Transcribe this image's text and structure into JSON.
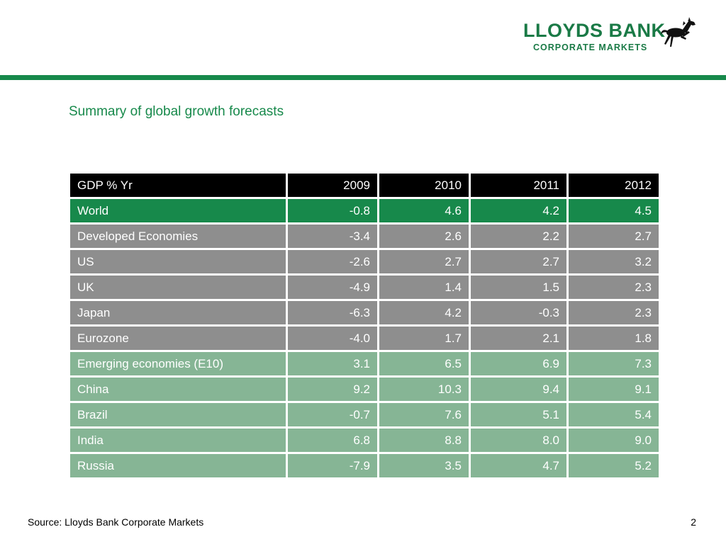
{
  "logo": {
    "line1": "LLOYDS BANK",
    "line2": "CORPORATE MARKETS",
    "color": "#1a7a46"
  },
  "title": "Summary of global growth forecasts",
  "table": {
    "header": {
      "label": "GDP % Yr",
      "years": [
        "2009",
        "2010",
        "2011",
        "2012"
      ]
    },
    "rows": [
      {
        "label": "World",
        "group": "world",
        "values": [
          "-0.8",
          "4.6",
          "4.2",
          "4.5"
        ]
      },
      {
        "label": "Developed Economies",
        "group": "developed",
        "values": [
          "-3.4",
          "2.6",
          "2.2",
          "2.7"
        ]
      },
      {
        "label": "US",
        "group": "developed",
        "values": [
          "-2.6",
          "2.7",
          "2.7",
          "3.2"
        ]
      },
      {
        "label": "UK",
        "group": "developed",
        "values": [
          "-4.9",
          "1.4",
          "1.5",
          "2.3"
        ]
      },
      {
        "label": "Japan",
        "group": "developed",
        "values": [
          "-6.3",
          "4.2",
          "-0.3",
          "2.3"
        ]
      },
      {
        "label": "Eurozone",
        "group": "developed",
        "values": [
          "-4.0",
          "1.7",
          "2.1",
          "1.8"
        ]
      },
      {
        "label": "Emerging economies (E10)",
        "group": "emerging",
        "values": [
          "3.1",
          "6.5",
          "6.9",
          "7.3"
        ]
      },
      {
        "label": "China",
        "group": "emerging",
        "values": [
          "9.2",
          "10.3",
          "9.4",
          "9.1"
        ]
      },
      {
        "label": "Brazil",
        "group": "emerging",
        "values": [
          "-0.7",
          "7.6",
          "5.1",
          "5.4"
        ]
      },
      {
        "label": "India",
        "group": "emerging",
        "values": [
          "6.8",
          "8.8",
          "8.0",
          "9.0"
        ]
      },
      {
        "label": "Russia",
        "group": "emerging",
        "values": [
          "-7.9",
          "3.5",
          "4.7",
          "5.2"
        ]
      }
    ],
    "colors": {
      "header": "#000000",
      "world": "#17894b",
      "developed": "#8e8e8e",
      "emerging": "#86b595"
    }
  },
  "footer": {
    "source": "Source: Lloyds Bank Corporate Markets",
    "page": "2"
  }
}
